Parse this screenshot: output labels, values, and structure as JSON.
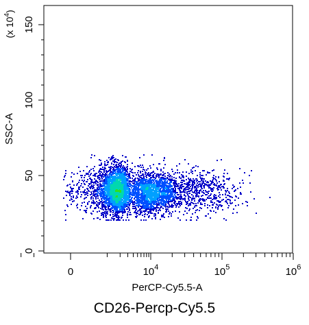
{
  "caption": "CD26-Percp-Cy5.5",
  "chart_data": {
    "type": "scatter",
    "style": "density dot plot",
    "xlabel": "PerCP-Cy5.5-A",
    "ylabel": "SSC-A",
    "y_multiplier_label": "(x 10",
    "y_multiplier_exp": "4",
    "x_scale": "biexponential",
    "xlim": [
      -300,
      1000000
    ],
    "ylim": [
      -3,
      158
    ],
    "grid": false,
    "x_ticks": [
      {
        "base": "0",
        "exp": ""
      },
      {
        "base": "10",
        "exp": "4"
      },
      {
        "base": "10",
        "exp": "5"
      },
      {
        "base": "10",
        "exp": "6"
      }
    ],
    "y_ticks": [
      {
        "value": 0,
        "label": "0"
      },
      {
        "value": 50,
        "label": "50"
      },
      {
        "value": 100,
        "label": "100"
      },
      {
        "value": 150,
        "label": "150"
      }
    ],
    "populations": [
      {
        "name": "",
        "x_center": 1500,
        "y_center": 41,
        "x_spread": 700,
        "y_spread": 8,
        "weight": 0.45
      },
      {
        "name": "",
        "x_center": 8000,
        "y_center": 39,
        "x_spread": 6000,
        "y_spread": 7,
        "weight": 0.4
      },
      {
        "name": "",
        "x_center": 40000,
        "y_center": 40,
        "x_spread": 25000,
        "y_spread": 7,
        "weight": 0.15
      }
    ],
    "density_colors": [
      "#0000c8",
      "#0050ff",
      "#00a0ff",
      "#00d8b0",
      "#30e020",
      "#c0e000"
    ]
  }
}
